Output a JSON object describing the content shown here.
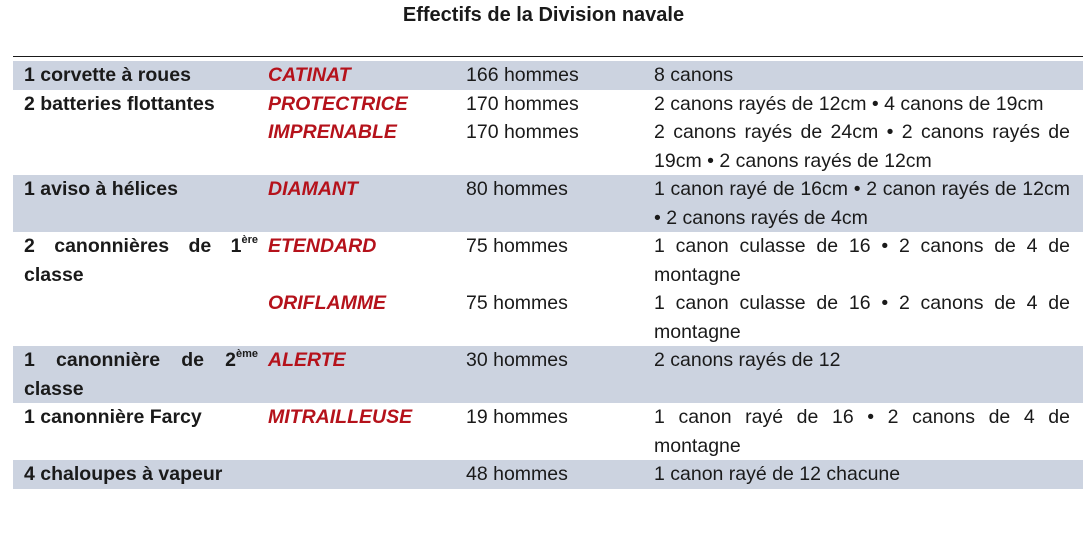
{
  "title": "Effectifs de la Division navale",
  "rows": [
    {
      "type": "1 corvette à roues",
      "name": "CATINAT",
      "crew": "166 hommes",
      "arms": "8 canons"
    },
    {
      "type": "2 batteries flottantes",
      "name": "PROTECTRICE",
      "crew": "170 hommes",
      "arms": "2 canons rayés de 12cm • 4 canons de 19cm"
    },
    {
      "type": "",
      "name": "IMPRENABLE",
      "crew": "170 hommes",
      "arms": "2 canons rayés de 24cm • 2 canons rayés de 19cm • 2 canons rayés de 12cm"
    },
    {
      "type": "1 aviso à hélices",
      "name": "DIAMANT",
      "crew": "80 hommes",
      "arms": "1 canon rayé de 16cm • 2 canon rayés de 12cm • 2 canons rayés de 4cm"
    },
    {
      "type_main": "2 canonnières de 1",
      "type_sup": "ère",
      "type_rest": "classe",
      "name": "ETENDARD",
      "crew": "75 hommes",
      "arms": "1 canon culasse de 16 • 2 canons de 4 de montagne"
    },
    {
      "type": "",
      "name": "ORIFLAMME",
      "crew": "75 hommes",
      "arms": "1 canon culasse de 16 • 2 canons de 4 de montagne"
    },
    {
      "type_main": "1 canonnière de 2",
      "type_sup": "ème",
      "type_rest": "classe",
      "name": "ALERTE",
      "crew": "30 hommes",
      "arms": "2 canons rayés de 12"
    },
    {
      "type": "1 canonnière Farcy",
      "name": "MITRAILLEUSE",
      "crew": "19 hommes",
      "arms": "1 canon rayé de 16 • 2 canons de 4 de montagne"
    },
    {
      "type": "4 chaloupes à vapeur",
      "name": "",
      "crew": "48 hommes",
      "arms": "1 canon rayé de 12 chacune"
    }
  ]
}
